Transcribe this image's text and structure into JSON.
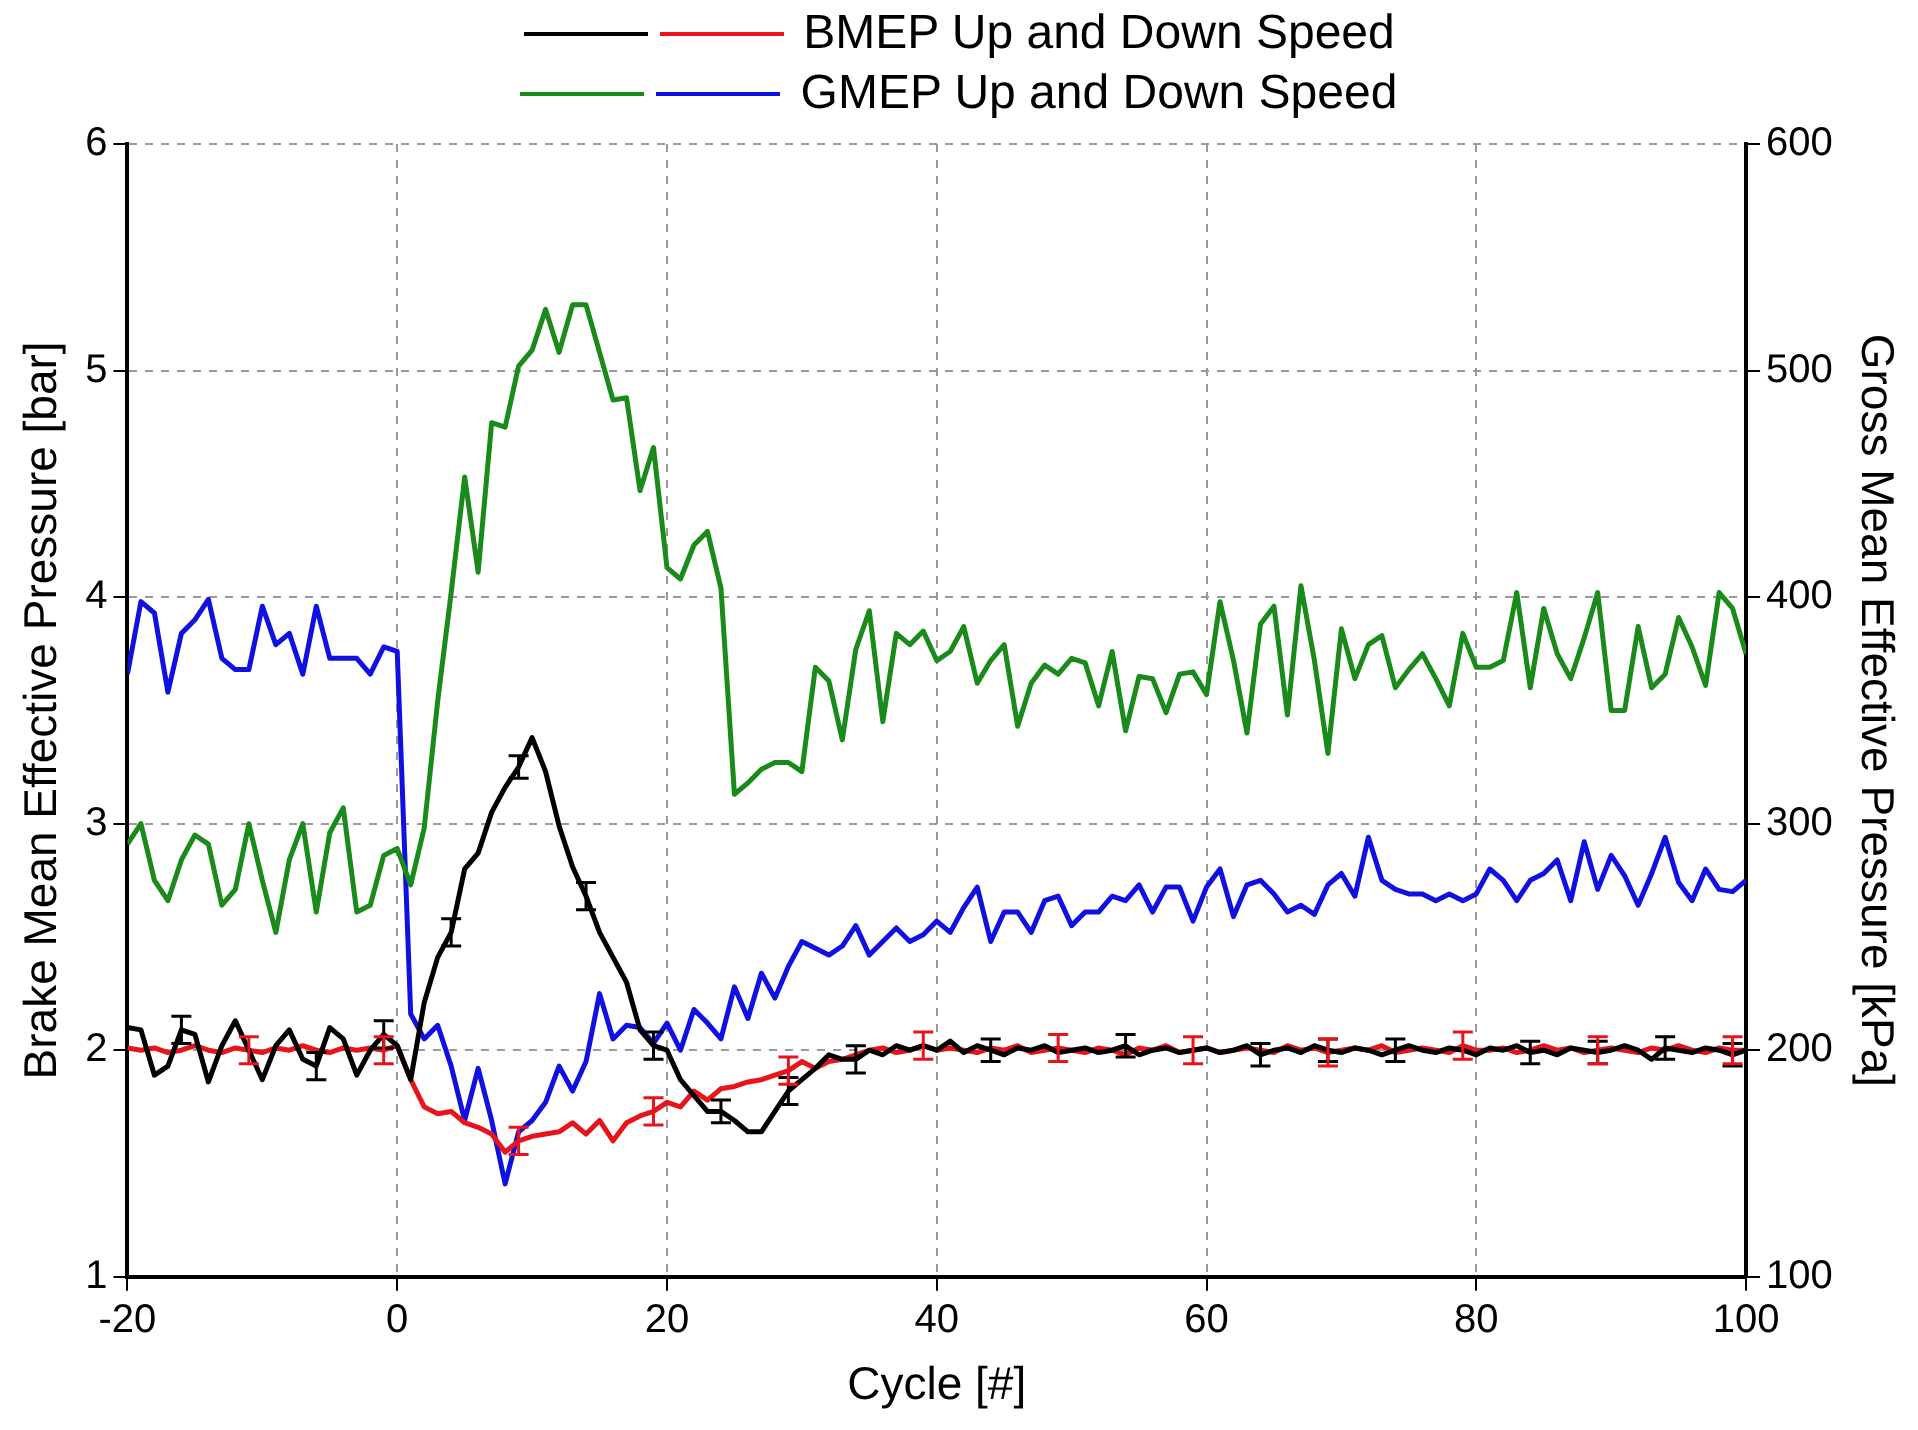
{
  "chart_data": {
    "type": "line",
    "xlabel": "Cycle [#]",
    "ylabel": "Brake Mean Effective Pressure [bar]",
    "y2label": "Gross Mean Effective Pressure [kPa]",
    "x": [
      -20,
      -19,
      -18,
      -17,
      -16,
      -15,
      -14,
      -13,
      -12,
      -11,
      -10,
      -9,
      -8,
      -7,
      -6,
      -5,
      -4,
      -3,
      -2,
      -1,
      0,
      1,
      2,
      3,
      4,
      5,
      6,
      7,
      8,
      9,
      10,
      11,
      12,
      13,
      14,
      15,
      16,
      17,
      18,
      19,
      20,
      21,
      22,
      23,
      24,
      25,
      26,
      27,
      28,
      29,
      30,
      31,
      32,
      33,
      34,
      35,
      36,
      37,
      38,
      39,
      40,
      41,
      42,
      43,
      44,
      45,
      46,
      47,
      48,
      49,
      50,
      51,
      52,
      53,
      54,
      55,
      56,
      57,
      58,
      59,
      60,
      61,
      62,
      63,
      64,
      65,
      66,
      67,
      68,
      69,
      70,
      71,
      72,
      73,
      74,
      75,
      76,
      77,
      78,
      79,
      80,
      81,
      82,
      83,
      84,
      85,
      86,
      87,
      88,
      89,
      90,
      91,
      92,
      93,
      94,
      95,
      96,
      97,
      98,
      99,
      100
    ],
    "xlim": [
      -20,
      100
    ],
    "xticks": [
      -20,
      0,
      20,
      40,
      60,
      80,
      100
    ],
    "ylim": [
      1,
      6
    ],
    "yticks": [
      1,
      2,
      3,
      4,
      5,
      6
    ],
    "y2lim": [
      100,
      600
    ],
    "y2ticks": [
      100,
      200,
      300,
      400,
      500,
      600
    ],
    "grid": true,
    "legend": "top",
    "series": [
      {
        "color": "#000000",
        "values": [
          2.1,
          2.09,
          1.89,
          1.93,
          2.09,
          2.07,
          1.86,
          2.02,
          2.13,
          2.0,
          1.87,
          2.02,
          2.09,
          1.96,
          1.93,
          2.1,
          2.05,
          1.89,
          2.0,
          2.07,
          2.02,
          1.87,
          2.21,
          2.41,
          2.52,
          2.8,
          2.87,
          3.05,
          3.16,
          3.25,
          3.38,
          3.23,
          2.99,
          2.81,
          2.68,
          2.52,
          2.41,
          2.3,
          2.09,
          2.02,
          2.0,
          1.87,
          1.8,
          1.73,
          1.73,
          1.69,
          1.64,
          1.64,
          1.73,
          1.82,
          1.87,
          1.92,
          1.98,
          1.96,
          1.96,
          2.0,
          1.98,
          2.02,
          2.0,
          2.02,
          2.0,
          2.04,
          1.99,
          2.02,
          2.0,
          1.98,
          2.01,
          2.0,
          2.02,
          1.99,
          2.0,
          2.01,
          1.99,
          2.0,
          2.02,
          1.98,
          2.0,
          2.01,
          1.99,
          2.0,
          2.01,
          1.99,
          2.0,
          2.02,
          1.98,
          2.0,
          2.01,
          1.99,
          2.02,
          2.0,
          1.99,
          2.01,
          2.0,
          1.98,
          2.0,
          2.02,
          2.0,
          1.99,
          2.01,
          2.0,
          1.98,
          2.01,
          2.0,
          2.02,
          1.99,
          2.0,
          1.98,
          2.01,
          2.0,
          1.99,
          2.0,
          2.02,
          2.0,
          1.96,
          2.01,
          2.0,
          1.99,
          2.01,
          2.0,
          1.98,
          2.0
        ],
        "errors": [
          null,
          null,
          null,
          null,
          0.06,
          null,
          null,
          null,
          null,
          null,
          null,
          null,
          null,
          null,
          0.06,
          null,
          null,
          null,
          null,
          0.06,
          null,
          null,
          null,
          null,
          0.06,
          null,
          null,
          null,
          null,
          0.05,
          null,
          null,
          null,
          null,
          0.06,
          null,
          null,
          null,
          null,
          0.06,
          null,
          null,
          null,
          null,
          0.05,
          null,
          null,
          null,
          null,
          0.06,
          null,
          null,
          null,
          null,
          0.06,
          null,
          null,
          null,
          null,
          null,
          null,
          null,
          null,
          null,
          0.05,
          null,
          null,
          null,
          null,
          null,
          null,
          null,
          null,
          null,
          0.05,
          null,
          null,
          null,
          null,
          null,
          null,
          null,
          null,
          null,
          0.05,
          null,
          null,
          null,
          null,
          0.05,
          null,
          null,
          null,
          null,
          0.05,
          null,
          null,
          null,
          null,
          null,
          null,
          null,
          null,
          null,
          0.05,
          null,
          null,
          null,
          null,
          0.05,
          null,
          null,
          null,
          null,
          0.05,
          null,
          null,
          null,
          null,
          0.05,
          null
        ]
      },
      {
        "name": "BMEP Up and Down Speed",
        "color": "#e8141b",
        "values": [
          2.01,
          2.0,
          2.01,
          1.99,
          2.0,
          2.02,
          2.0,
          1.99,
          2.01,
          2.0,
          1.99,
          2.01,
          2.0,
          2.02,
          2.0,
          1.99,
          2.01,
          2.0,
          2.01,
          2.0,
          2.02,
          1.87,
          1.75,
          1.72,
          1.73,
          1.68,
          1.66,
          1.63,
          1.55,
          1.6,
          1.62,
          1.63,
          1.64,
          1.68,
          1.63,
          1.69,
          1.6,
          1.68,
          1.71,
          1.73,
          1.77,
          1.75,
          1.82,
          1.78,
          1.83,
          1.84,
          1.86,
          1.87,
          1.89,
          1.91,
          1.95,
          1.92,
          1.95,
          1.96,
          1.98,
          2.0,
          2.01,
          1.99,
          2.0,
          2.02,
          2.0,
          2.01,
          2.0,
          1.99,
          2.01,
          2.0,
          2.02,
          1.99,
          2.0,
          2.01,
          2.0,
          1.99,
          2.01,
          2.0,
          1.98,
          2.01,
          2.0,
          2.02,
          1.99,
          2.0,
          2.01,
          1.99,
          2.0,
          2.01,
          2.0,
          1.99,
          2.02,
          2.0,
          2.01,
          1.99,
          2.0,
          2.01,
          2.0,
          2.02,
          1.99,
          2.0,
          2.01,
          2.0,
          1.99,
          2.02,
          2.0,
          2.0,
          2.01,
          1.99,
          2.0,
          2.02,
          2.0,
          2.01,
          1.99,
          2.0,
          2.01,
          2.0,
          1.99,
          2.01,
          2.0,
          2.02,
          2.0,
          1.99,
          2.01,
          2.0,
          2.0
        ],
        "errors": [
          null,
          null,
          null,
          null,
          null,
          null,
          null,
          null,
          null,
          0.06,
          null,
          null,
          null,
          null,
          null,
          null,
          null,
          null,
          null,
          0.06,
          null,
          null,
          null,
          null,
          null,
          null,
          null,
          null,
          null,
          0.06,
          null,
          null,
          null,
          null,
          null,
          null,
          null,
          null,
          null,
          0.06,
          null,
          null,
          null,
          null,
          null,
          null,
          null,
          null,
          null,
          0.06,
          null,
          null,
          null,
          null,
          null,
          null,
          null,
          null,
          null,
          0.06,
          null,
          null,
          null,
          null,
          null,
          null,
          null,
          null,
          null,
          0.06,
          null,
          null,
          null,
          null,
          null,
          null,
          null,
          null,
          null,
          0.06,
          null,
          null,
          null,
          null,
          null,
          null,
          null,
          null,
          null,
          0.06,
          null,
          null,
          null,
          null,
          null,
          null,
          null,
          null,
          null,
          0.06,
          null,
          null,
          null,
          null,
          null,
          null,
          null,
          null,
          null,
          0.06,
          null,
          null,
          null,
          null,
          null,
          null,
          null,
          null,
          null,
          0.06,
          null
        ]
      },
      {
        "color": "#1a8a1a",
        "axis": "y2",
        "values": [
          291,
          300,
          275,
          266,
          284,
          295,
          291,
          264,
          271,
          300,
          275,
          252,
          284,
          300,
          261,
          296,
          307,
          261,
          264,
          286,
          289,
          273,
          298,
          354,
          402,
          453,
          411,
          477,
          475,
          502,
          509,
          527,
          508,
          529,
          529,
          508,
          487,
          488,
          447,
          466,
          413,
          408,
          423,
          429,
          404,
          313,
          318,
          324,
          327,
          327,
          323,
          369,
          363,
          337,
          377,
          394,
          345,
          384,
          379,
          385,
          372,
          376,
          387,
          362,
          372,
          379,
          343,
          362,
          370,
          366,
          373,
          371,
          352,
          376,
          341,
          365,
          364,
          349,
          366,
          367,
          357,
          398,
          372,
          340,
          388,
          396,
          348,
          405,
          372,
          331,
          386,
          364,
          379,
          383,
          360,
          368,
          375,
          364,
          352,
          384,
          369,
          369,
          372,
          402,
          360,
          395,
          375,
          364,
          382,
          402,
          350,
          350,
          387,
          360,
          366,
          391,
          378,
          361,
          402,
          395,
          375
        ]
      },
      {
        "name": "GMEP Up and Down Speed",
        "color": "#1010e0",
        "axis": "y2",
        "values": [
          366,
          398,
          393,
          358,
          384,
          390,
          399,
          373,
          368,
          368,
          396,
          379,
          384,
          366,
          396,
          373,
          373,
          373,
          366,
          378,
          376,
          216,
          205,
          211,
          193,
          169,
          192,
          169,
          141,
          164,
          169,
          177,
          193,
          182,
          195,
          225,
          205,
          211,
          210,
          203,
          212,
          200,
          218,
          212,
          205,
          228,
          214,
          234,
          223,
          237,
          248,
          245,
          242,
          246,
          255,
          242,
          248,
          254,
          248,
          251,
          257,
          252,
          263,
          272,
          248,
          261,
          261,
          252,
          266,
          268,
          255,
          261,
          261,
          268,
          266,
          273,
          261,
          272,
          272,
          257,
          272,
          280,
          259,
          273,
          275,
          269,
          261,
          264,
          260,
          273,
          278,
          268,
          294,
          275,
          271,
          269,
          269,
          266,
          269,
          266,
          269,
          280,
          275,
          266,
          275,
          278,
          284,
          266,
          292,
          271,
          286,
          277,
          264,
          278,
          294,
          274,
          266,
          280,
          271,
          270,
          275
        ]
      }
    ]
  }
}
